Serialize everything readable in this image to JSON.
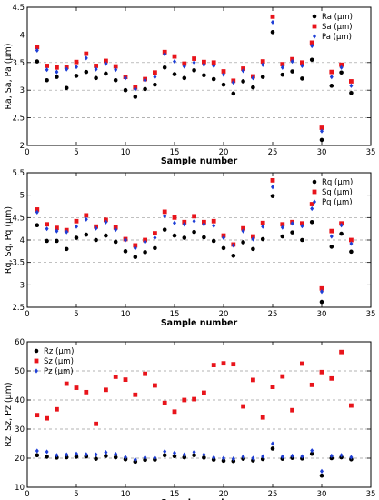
{
  "chart_data": [
    {
      "type": "scatter",
      "xlabel": "Sample number",
      "ylabel": "Ra, Sa, Pa (μm)",
      "xlim": [
        0,
        35
      ],
      "ylim": [
        2,
        4.5
      ],
      "xticks": [
        0,
        5,
        10,
        15,
        20,
        25,
        30,
        35
      ],
      "yticks": [
        2,
        2.5,
        3,
        3.5,
        4,
        4.5
      ],
      "grid": "dashed horizontal",
      "legend": "top-right",
      "x": [
        1,
        2,
        3,
        4,
        5,
        6,
        7,
        8,
        9,
        10,
        11,
        12,
        13,
        14,
        15,
        16,
        17,
        18,
        19,
        20,
        21,
        22,
        23,
        24,
        25,
        26,
        27,
        28,
        29,
        30,
        31,
        32,
        33
      ],
      "series": [
        {
          "name": "Ra  (μm)",
          "marker": "circle",
          "color": "#000000",
          "values": [
            3.52,
            3.18,
            3.24,
            3.04,
            3.26,
            3.33,
            3.22,
            3.3,
            3.18,
            3.0,
            2.88,
            3.02,
            3.1,
            3.41,
            3.29,
            3.22,
            3.36,
            3.27,
            3.2,
            3.1,
            2.94,
            3.16,
            3.05,
            3.24,
            4.05,
            3.28,
            3.34,
            3.21,
            3.55,
            2.1,
            3.08,
            3.32,
            2.95
          ]
        },
        {
          "name": "Sa  (μm)",
          "marker": "square",
          "color": "#e8141b",
          "values": [
            3.78,
            3.44,
            3.41,
            3.42,
            3.51,
            3.66,
            3.44,
            3.53,
            3.43,
            3.24,
            3.05,
            3.2,
            3.32,
            3.69,
            3.61,
            3.48,
            3.57,
            3.51,
            3.5,
            3.34,
            3.17,
            3.39,
            3.25,
            3.52,
            4.33,
            3.47,
            3.56,
            3.5,
            3.86,
            2.32,
            3.33,
            3.46,
            3.16
          ]
        },
        {
          "name": "Pa  (μm)",
          "marker": "diamond",
          "color": "#1f3fd6",
          "values": [
            3.72,
            3.37,
            3.33,
            3.38,
            3.42,
            3.58,
            3.38,
            3.48,
            3.37,
            3.22,
            3.02,
            3.18,
            3.24,
            3.65,
            3.52,
            3.43,
            3.5,
            3.46,
            3.44,
            3.28,
            3.14,
            3.35,
            3.22,
            3.46,
            4.23,
            3.41,
            3.52,
            3.44,
            3.8,
            2.26,
            3.24,
            3.41,
            3.08
          ]
        }
      ]
    },
    {
      "type": "scatter",
      "xlabel": "Sample number",
      "ylabel": "Rq, Sq, Pq (μm)",
      "xlim": [
        0,
        35
      ],
      "ylim": [
        2.5,
        5.5
      ],
      "xticks": [
        0,
        5,
        10,
        15,
        20,
        25,
        30,
        35
      ],
      "yticks": [
        2.5,
        3,
        3.5,
        4,
        4.5,
        5,
        5.5
      ],
      "grid": "dashed horizontal",
      "legend": "top-right",
      "x": [
        1,
        2,
        3,
        4,
        5,
        6,
        7,
        8,
        9,
        10,
        11,
        12,
        13,
        14,
        15,
        16,
        17,
        18,
        19,
        20,
        21,
        22,
        23,
        24,
        25,
        26,
        27,
        28,
        29,
        30,
        31,
        32,
        33
      ],
      "series": [
        {
          "name": "Rq  (μm)",
          "marker": "circle",
          "color": "#000000",
          "values": [
            4.33,
            3.98,
            3.98,
            3.8,
            4.05,
            4.12,
            4.0,
            4.1,
            3.96,
            3.75,
            3.62,
            3.73,
            3.82,
            4.23,
            4.1,
            4.05,
            4.18,
            4.06,
            3.98,
            3.82,
            3.65,
            3.95,
            3.8,
            4.02,
            4.98,
            4.08,
            4.17,
            4.0,
            4.4,
            2.62,
            3.85,
            4.14,
            3.74
          ]
        },
        {
          "name": "Sq  (μm)",
          "marker": "square",
          "color": "#e8141b",
          "values": [
            4.68,
            4.35,
            4.27,
            4.22,
            4.42,
            4.55,
            4.3,
            4.45,
            4.28,
            4.02,
            3.88,
            4.0,
            4.15,
            4.63,
            4.5,
            4.4,
            4.53,
            4.4,
            4.42,
            4.1,
            3.9,
            4.26,
            4.08,
            4.38,
            5.33,
            4.35,
            4.4,
            4.37,
            4.8,
            2.92,
            4.2,
            4.37,
            4.0
          ]
        },
        {
          "name": "Pq  (μm)",
          "marker": "diamond",
          "color": "#1f3fd6",
          "values": [
            4.62,
            4.25,
            4.2,
            4.18,
            4.3,
            4.46,
            4.26,
            4.4,
            4.23,
            4.0,
            3.82,
            3.96,
            4.05,
            4.53,
            4.38,
            4.35,
            4.42,
            4.35,
            4.32,
            4.05,
            3.88,
            4.2,
            4.02,
            4.3,
            5.18,
            4.28,
            4.37,
            4.31,
            4.7,
            2.85,
            4.08,
            4.33,
            3.92
          ]
        }
      ]
    },
    {
      "type": "scatter",
      "xlabel": "Sample number",
      "ylabel": "Rz, Sz, Pz (μm)",
      "xlim": [
        0,
        35
      ],
      "ylim": [
        10,
        60
      ],
      "xticks": [
        0,
        5,
        10,
        15,
        20,
        25,
        30,
        35
      ],
      "yticks": [
        10,
        20,
        30,
        40,
        50,
        60
      ],
      "grid": "dashed horizontal",
      "legend": "top-left",
      "x": [
        1,
        2,
        3,
        4,
        5,
        6,
        7,
        8,
        9,
        10,
        11,
        12,
        13,
        14,
        15,
        16,
        17,
        18,
        19,
        20,
        21,
        22,
        23,
        24,
        25,
        26,
        27,
        28,
        29,
        30,
        31,
        32,
        33
      ],
      "series": [
        {
          "name": "Rz  (μm)",
          "marker": "circle",
          "color": "#000000",
          "values": [
            21,
            20.5,
            20.2,
            20.3,
            20.5,
            20.6,
            19.8,
            20.8,
            20.3,
            19.6,
            18.8,
            19.4,
            19.5,
            21,
            20.7,
            20.3,
            21,
            20.2,
            19.5,
            19.1,
            19,
            19.8,
            19.2,
            19.7,
            23.3,
            19.8,
            20.1,
            19.9,
            21.5,
            14,
            20,
            20.3,
            19.6
          ]
        },
        {
          "name": "Sz  (μm)",
          "marker": "square",
          "color": "#e8141b",
          "values": [
            34.8,
            33.7,
            36.8,
            45.6,
            44.2,
            42.7,
            31.8,
            43.5,
            48,
            47,
            41.8,
            49,
            45,
            39,
            36,
            40,
            40.3,
            42.5,
            52,
            52.6,
            52.3,
            37.8,
            46.9,
            34,
            44.5,
            48.1,
            36.5,
            52.5,
            45.2,
            49.6,
            47.4,
            56.5,
            38.1
          ]
        },
        {
          "name": "Pz  (μm)",
          "marker": "diamond",
          "color": "#1f3fd6",
          "values": [
            22.5,
            22.2,
            21,
            21.2,
            21.5,
            21.3,
            21.2,
            22,
            21.4,
            20.3,
            19.5,
            20.2,
            20.1,
            22.3,
            21.8,
            21.2,
            22.1,
            21.2,
            20.2,
            20,
            19.8,
            20.5,
            20,
            20.6,
            25,
            20.5,
            20.8,
            20.6,
            22.6,
            15.5,
            20.8,
            21,
            20.3
          ]
        }
      ]
    }
  ]
}
